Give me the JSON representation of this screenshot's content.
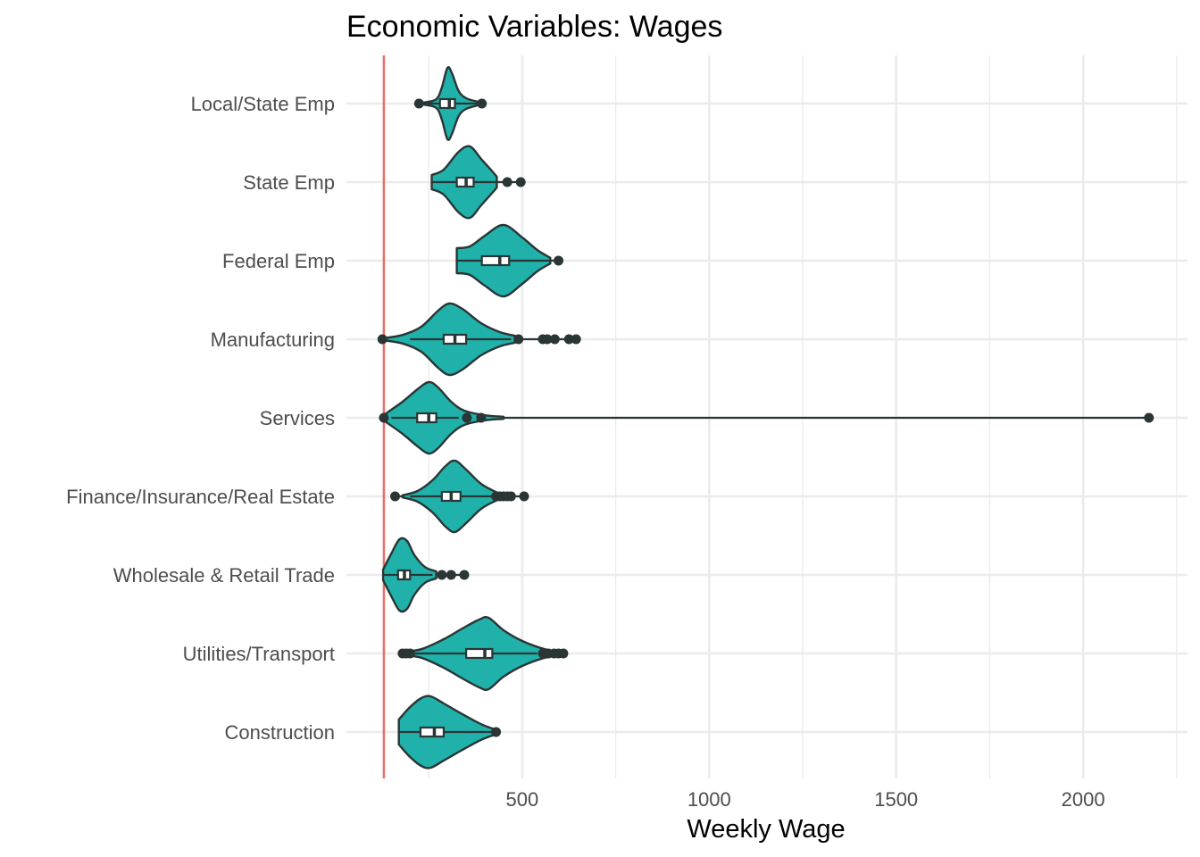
{
  "chart_data": {
    "type": "violin",
    "title": "Economic Variables: Wages",
    "xlabel": "Weekly Wage",
    "ylabel": "",
    "xlim": [
      0,
      2270
    ],
    "x_ticks": [
      500,
      1000,
      1500,
      2000
    ],
    "x_minor_ticks": [
      250,
      750,
      1250,
      1750,
      2250
    ],
    "grid": true,
    "reference_line": {
      "x": 130,
      "color": "#E8706A"
    },
    "fill_color": "#20B2AA",
    "outline_color": "#2a3535",
    "categories": [
      "Local/State Emp",
      "State Emp",
      "Federal Emp",
      "Manufacturing",
      "Services",
      "Finance/Insurance/Real Estate",
      "Wholesale & Retail Trade",
      "Utilities/Transport",
      "Construction"
    ],
    "series": [
      {
        "category": "Local/State Emp",
        "min": 238,
        "q1": 280,
        "median": 305,
        "q3": 320,
        "max": 381,
        "outliers": [
          224,
          392
        ],
        "density": [
          [
            238,
            0.03
          ],
          [
            270,
            0.12
          ],
          [
            285,
            0.45
          ],
          [
            300,
            1.0
          ],
          [
            312,
            0.85
          ],
          [
            330,
            0.35
          ],
          [
            350,
            0.15
          ],
          [
            381,
            0.05
          ]
        ]
      },
      {
        "category": "State Emp",
        "min": 258,
        "q1": 325,
        "median": 350,
        "q3": 370,
        "max": 432,
        "outliers": [
          460,
          496
        ],
        "density": [
          [
            258,
            0.2
          ],
          [
            290,
            0.35
          ],
          [
            330,
            0.85
          ],
          [
            360,
            1.0
          ],
          [
            390,
            0.65
          ],
          [
            420,
            0.3
          ],
          [
            432,
            0.15
          ]
        ]
      },
      {
        "category": "Federal Emp",
        "min": 325,
        "q1": 392,
        "median": 440,
        "q3": 465,
        "max": 575,
        "outliers": [
          597
        ],
        "density": [
          [
            325,
            0.35
          ],
          [
            360,
            0.4
          ],
          [
            400,
            0.7
          ],
          [
            450,
            1.0
          ],
          [
            500,
            0.65
          ],
          [
            540,
            0.3
          ],
          [
            575,
            0.08
          ]
        ]
      },
      {
        "category": "Manufacturing",
        "min": 200,
        "q1": 290,
        "median": 320,
        "q3": 350,
        "max": 470,
        "outliers": [
          126,
          490,
          555,
          567,
          587,
          625,
          644
        ],
        "density": [
          [
            130,
            0.03
          ],
          [
            180,
            0.12
          ],
          [
            230,
            0.35
          ],
          [
            275,
            0.8
          ],
          [
            305,
            1.0
          ],
          [
            340,
            0.85
          ],
          [
            390,
            0.45
          ],
          [
            440,
            0.2
          ],
          [
            480,
            0.1
          ]
        ]
      },
      {
        "category": "Services",
        "min": 150,
        "q1": 219,
        "median": 250,
        "q3": 270,
        "max": 330,
        "outliers": [
          130,
          352,
          390,
          2176
        ],
        "density": [
          [
            130,
            0.08
          ],
          [
            180,
            0.45
          ],
          [
            220,
            0.8
          ],
          [
            250,
            1.0
          ],
          [
            275,
            0.85
          ],
          [
            310,
            0.45
          ],
          [
            345,
            0.2
          ],
          [
            400,
            0.07
          ],
          [
            450,
            0.03
          ]
        ]
      },
      {
        "category": "Finance/Insurance/Real Estate",
        "min": 200,
        "q1": 285,
        "median": 310,
        "q3": 335,
        "max": 420,
        "outliers": [
          160,
          430,
          440,
          450,
          460,
          470,
          505
        ],
        "density": [
          [
            180,
            0.03
          ],
          [
            220,
            0.15
          ],
          [
            260,
            0.45
          ],
          [
            295,
            0.85
          ],
          [
            320,
            1.0
          ],
          [
            350,
            0.75
          ],
          [
            390,
            0.35
          ],
          [
            430,
            0.12
          ],
          [
            450,
            0.05
          ]
        ]
      },
      {
        "category": "Wholesale & Retail Trade",
        "min": 128,
        "q1": 168,
        "median": 185,
        "q3": 200,
        "max": 260,
        "outliers": [
          285,
          310,
          345
        ],
        "density": [
          [
            128,
            0.15
          ],
          [
            150,
            0.6
          ],
          [
            172,
            1.0
          ],
          [
            192,
            0.95
          ],
          [
            212,
            0.55
          ],
          [
            240,
            0.22
          ],
          [
            270,
            0.1
          ]
        ]
      },
      {
        "category": "Utilities/Transport",
        "min": 200,
        "q1": 350,
        "median": 400,
        "q3": 420,
        "max": 540,
        "outliers": [
          180,
          190,
          200,
          555,
          570,
          585,
          597,
          610
        ],
        "density": [
          [
            180,
            0.05
          ],
          [
            230,
            0.12
          ],
          [
            290,
            0.4
          ],
          [
            340,
            0.7
          ],
          [
            385,
            0.95
          ],
          [
            410,
            1.0
          ],
          [
            450,
            0.65
          ],
          [
            500,
            0.35
          ],
          [
            560,
            0.12
          ],
          [
            600,
            0.05
          ]
        ]
      },
      {
        "category": "Construction",
        "min": 170,
        "q1": 228,
        "median": 265,
        "q3": 290,
        "max": 420,
        "outliers": [
          430
        ],
        "density": [
          [
            170,
            0.35
          ],
          [
            200,
            0.7
          ],
          [
            230,
            0.95
          ],
          [
            255,
            1.0
          ],
          [
            290,
            0.8
          ],
          [
            340,
            0.5
          ],
          [
            390,
            0.22
          ],
          [
            425,
            0.08
          ]
        ]
      }
    ]
  }
}
